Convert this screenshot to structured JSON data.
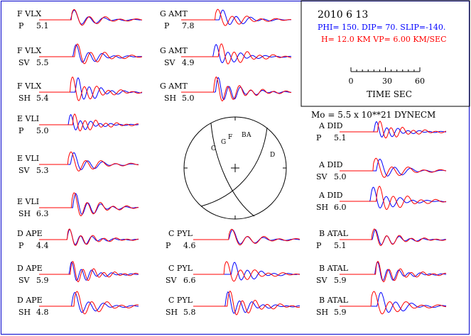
{
  "header": {
    "date": "2010  6 13",
    "mechanism": "PHI= 150. DIP= 70. SLIP=-140.",
    "depth_velocity": "H= 12.0 KM  VP= 6.00 KM/SEC",
    "scale_ticks": [
      "0",
      "30",
      "60"
    ],
    "scale_label": "TIME   SEC",
    "moment": "Mo =   5.5 x 10**21 DYNECM"
  },
  "colors": {
    "frame": "#0000cc",
    "observed": "#0000ff",
    "synthetic": "#ff0000",
    "text": "#000000"
  },
  "stations": [
    {
      "id": "s1",
      "code": "F VLX",
      "phase": "P",
      "amp": "5.1"
    },
    {
      "id": "s2",
      "code": "F VLX",
      "phase": "SV",
      "amp": "5.5"
    },
    {
      "id": "s3",
      "code": "F VLX",
      "phase": "SH",
      "amp": "5.4"
    },
    {
      "id": "s4",
      "code": "E VLI",
      "phase": "P",
      "amp": "5.0"
    },
    {
      "id": "s5",
      "code": "E VLI",
      "phase": "SV",
      "amp": "5.3"
    },
    {
      "id": "s6",
      "code": "E VLI",
      "phase": "SH",
      "amp": "6.3"
    },
    {
      "id": "s7",
      "code": "D APE",
      "phase": "P",
      "amp": "4.4"
    },
    {
      "id": "s8",
      "code": "D APE",
      "phase": "SV",
      "amp": "5.9"
    },
    {
      "id": "s9",
      "code": "D APE",
      "phase": "SH",
      "amp": "4.8"
    },
    {
      "id": "s10",
      "code": "G AMT",
      "phase": "P",
      "amp": "7.8"
    },
    {
      "id": "s11",
      "code": "G AMT",
      "phase": "SV",
      "amp": "4.9"
    },
    {
      "id": "s12",
      "code": "G AMT",
      "phase": "SH",
      "amp": "5.0"
    },
    {
      "id": "s13",
      "code": "C PYL",
      "phase": "P",
      "amp": "4.6"
    },
    {
      "id": "s14",
      "code": "C PYL",
      "phase": "SV",
      "amp": "6.6"
    },
    {
      "id": "s15",
      "code": "C PYL",
      "phase": "SH",
      "amp": "5.8"
    },
    {
      "id": "s16",
      "code": "A DID",
      "phase": "P",
      "amp": "5.1"
    },
    {
      "id": "s17",
      "code": "A DID",
      "phase": "SV",
      "amp": "5.0"
    },
    {
      "id": "s18",
      "code": "A DID",
      "phase": "SH",
      "amp": "6.0"
    },
    {
      "id": "s19",
      "code": "B ATAL",
      "phase": "P",
      "amp": "5.1"
    },
    {
      "id": "s20",
      "code": "B ATAL",
      "phase": "SV",
      "amp": "5.9"
    },
    {
      "id": "s21",
      "code": "B ATAL",
      "phase": "SH",
      "amp": "5.9"
    }
  ],
  "stereonet_letters": [
    "C",
    "G",
    "F",
    "B",
    "A",
    "D"
  ]
}
